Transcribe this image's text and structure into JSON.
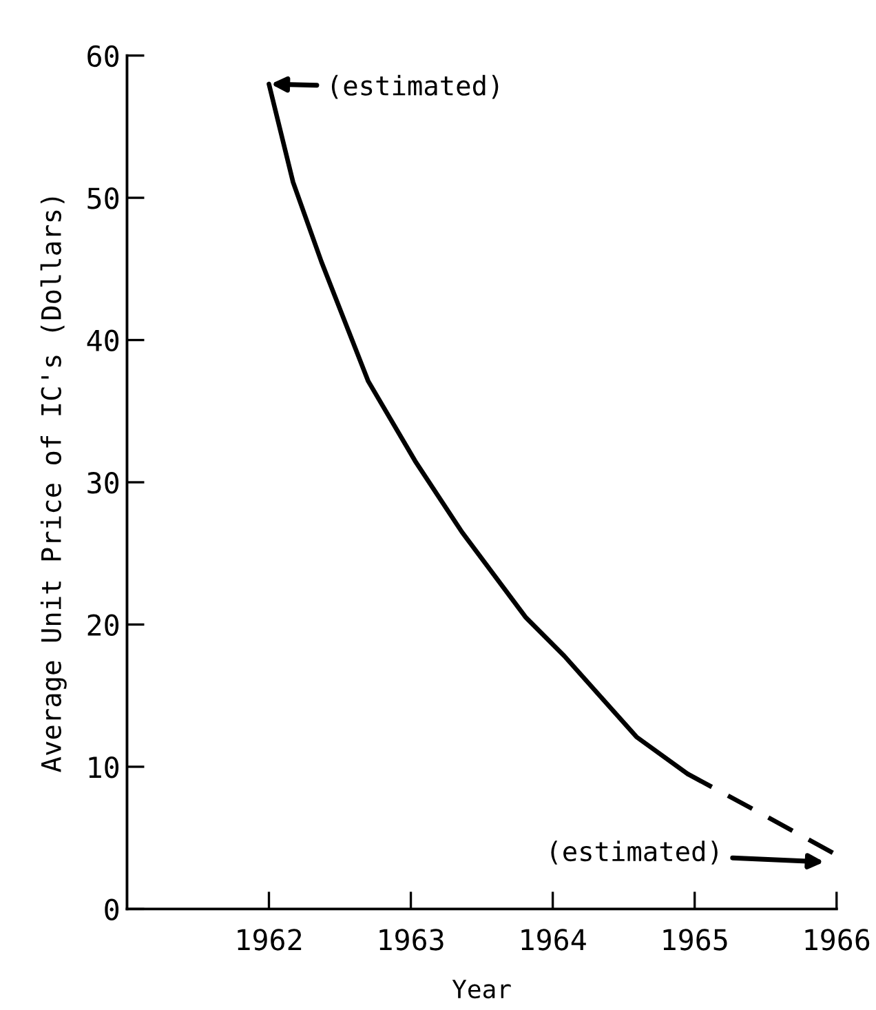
{
  "chart_data": {
    "type": "line",
    "xlabel": "Year",
    "ylabel": "Average Unit Price of IC's (Dollars)",
    "series": [
      {
        "color": "#000000",
        "line_style": "solid",
        "x": [
          1962.0,
          1962.17,
          1962.37,
          1962.7,
          1963.03,
          1963.36,
          1963.81,
          1964.08,
          1964.59,
          1964.95
        ],
        "values": [
          58,
          51.1,
          45.5,
          37.1,
          31.5,
          26.5,
          20.5,
          17.8,
          12.1,
          9.5
        ]
      },
      {
        "color": "#000000",
        "line_style": "dashed",
        "x": [
          1964.95,
          1965.47,
          1966.0
        ],
        "values": [
          9.5,
          6.7,
          3.8
        ]
      }
    ],
    "annotations": [
      {
        "text": "(estimated)",
        "x": 1962.0,
        "y": 58
      },
      "(estimated)"
    ],
    "xlim": [
      1961,
      1966
    ],
    "xticks": [
      1962,
      1963,
      1964,
      1965,
      1966
    ],
    "ylim": [
      0,
      60
    ],
    "yticks": [
      0,
      10,
      20,
      30,
      40,
      50,
      60
    ],
    "grid": false,
    "legend": false,
    "marker": "none"
  }
}
